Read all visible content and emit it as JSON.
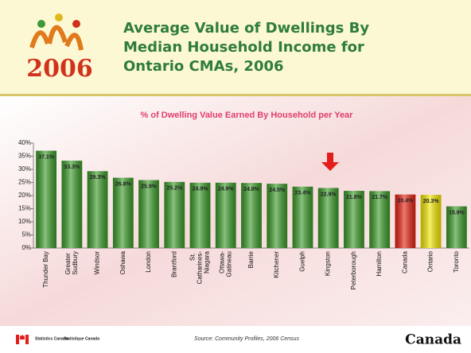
{
  "chart_data": {
    "type": "bar",
    "logo_text": "2006",
    "title": "Average Value of Dwellings By Median Household Income for Ontario CMAs, 2006",
    "subtitle": "% of Dwelling Value Earned By Household per Year",
    "categories": [
      "Thunder Bay",
      "Greater Sudbury",
      "Windsor",
      "Oshawa",
      "London",
      "Brantford",
      "St. Catharines-Niagara",
      "Ottawa-Gatineau",
      "Barrie",
      "Kitchener",
      "Guelph",
      "Kingston",
      "Peterborough",
      "Hamilton",
      "Canada",
      "Ontario",
      "Toronto"
    ],
    "values": [
      37.1,
      33.3,
      29.3,
      26.8,
      25.9,
      25.2,
      24.9,
      24.9,
      24.8,
      24.5,
      23.4,
      22.9,
      21.8,
      21.7,
      20.4,
      20.3,
      15.9
    ],
    "value_labels": [
      "37.1%",
      "33.3%",
      "29.3%",
      "26.8%",
      "25.9%",
      "25.2%",
      "24.9%",
      "24.9%",
      "24.8%",
      "24.5%",
      "23.4%",
      "22.9%",
      "21.8%",
      "21.7%",
      "20.4%",
      "20.3%",
      "15.9%"
    ],
    "colors": [
      "#3a9a28",
      "#3a9a28",
      "#3a9a28",
      "#3a9a28",
      "#3a9a28",
      "#3a9a28",
      "#3a9a28",
      "#3a9a28",
      "#3a9a28",
      "#3a9a28",
      "#3a9a28",
      "#3a9a28",
      "#3a9a28",
      "#3a9a28",
      "#e52010",
      "#f2e600",
      "#3a9a28"
    ],
    "ylim": [
      0,
      40
    ],
    "yticks": [
      {
        "value": 0,
        "label": "0%"
      },
      {
        "value": 5,
        "label": "5%"
      },
      {
        "value": 10,
        "label": "10%"
      },
      {
        "value": 15,
        "label": "15%"
      },
      {
        "value": 20,
        "label": "20%"
      },
      {
        "value": 25,
        "label": "25%"
      },
      {
        "value": 30,
        "label": "30%"
      },
      {
        "value": 35,
        "label": "35%"
      },
      {
        "value": 40,
        "label": "40%"
      }
    ],
    "source": "Source: Community Profiles, 2006 Census",
    "footer_left": [
      "Statistics Canada",
      "Statistique Canada"
    ],
    "footer_right": "Canada"
  }
}
